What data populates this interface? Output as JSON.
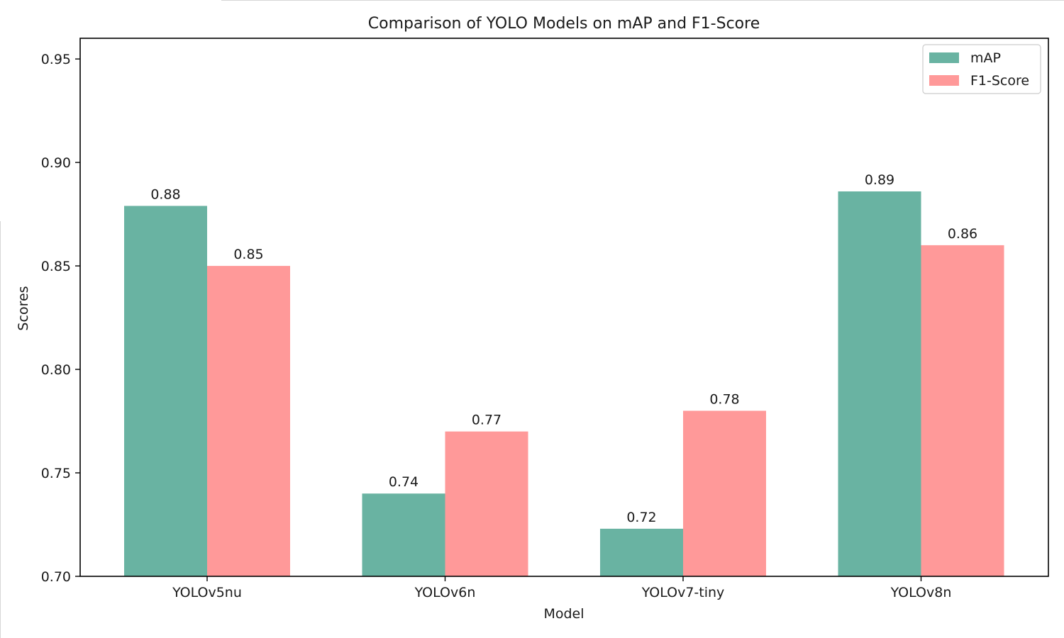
{
  "chart_data": {
    "type": "bar",
    "title": "Comparison of YOLO Models on mAP and F1-Score",
    "xlabel": "Model",
    "ylabel": "Scores",
    "categories": [
      "YOLOv5nu",
      "YOLOv6n",
      "YOLOv7-tiny",
      "YOLOv8n"
    ],
    "series": [
      {
        "name": "mAP",
        "color": "#69b3a2",
        "values": [
          0.879,
          0.74,
          0.723,
          0.886
        ],
        "labels": [
          "0.88",
          "0.74",
          "0.72",
          "0.89"
        ]
      },
      {
        "name": "F1-Score",
        "color": "#ff9999",
        "values": [
          0.85,
          0.77,
          0.78,
          0.86
        ],
        "labels": [
          "0.85",
          "0.77",
          "0.78",
          "0.86"
        ]
      }
    ],
    "ylim": [
      0.7,
      0.96
    ],
    "yticks": [
      0.7,
      0.75,
      0.8,
      0.85,
      0.9,
      0.95
    ],
    "ytick_labels": [
      "0.70",
      "0.75",
      "0.80",
      "0.85",
      "0.90",
      "0.95"
    ],
    "grid": false,
    "legend_position": "top-right"
  }
}
